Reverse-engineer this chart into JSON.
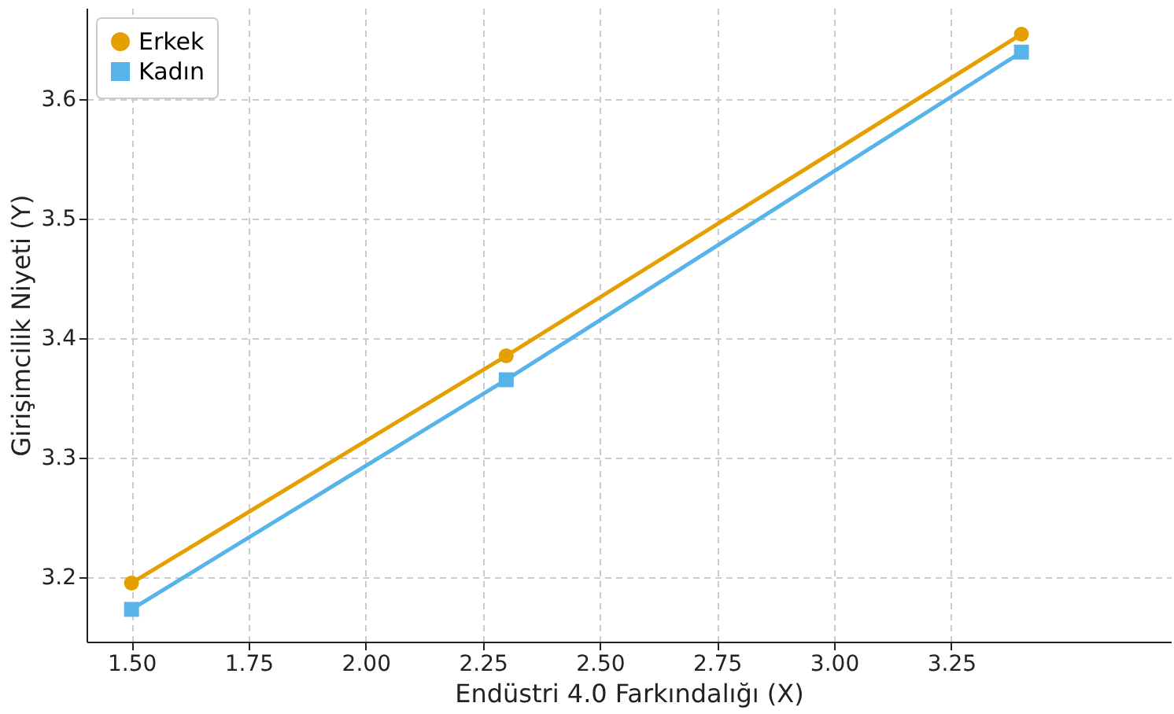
{
  "chart_data": {
    "type": "line",
    "xlabel": "Endüstri 4.0 Farkındalığı (X)",
    "ylabel": "Girişimcilik Niyeti (Y)",
    "x": [
      1.5,
      2.3,
      3.4
    ],
    "series": [
      {
        "name": "Erkek",
        "color": "#e69f00",
        "marker": "circle",
        "values": [
          3.195,
          3.385,
          3.654
        ]
      },
      {
        "name": "Kadın",
        "color": "#56b4e9",
        "marker": "square",
        "values": [
          3.173,
          3.365,
          3.639
        ]
      }
    ],
    "xlim": [
      1.404,
      3.719
    ],
    "xticks": [
      {
        "value": 1.5,
        "label": "1.50"
      },
      {
        "value": 1.75,
        "label": "1.75"
      },
      {
        "value": 2.0,
        "label": "2.00"
      },
      {
        "value": 2.25,
        "label": "2.25"
      },
      {
        "value": 2.5,
        "label": "2.50"
      },
      {
        "value": 2.75,
        "label": "2.75"
      },
      {
        "value": 3.0,
        "label": "3.00"
      },
      {
        "value": 3.25,
        "label": "3.25"
      }
    ],
    "ylim": [
      3.146,
      3.676
    ],
    "yticks": [
      {
        "value": 3.2,
        "label": "3.2"
      },
      {
        "value": 3.3,
        "label": "3.3"
      },
      {
        "value": 3.4,
        "label": "3.4"
      },
      {
        "value": 3.5,
        "label": "3.5"
      },
      {
        "value": 3.6,
        "label": "3.6"
      }
    ],
    "grid": true,
    "legend": "top left",
    "line_style": "solid"
  }
}
